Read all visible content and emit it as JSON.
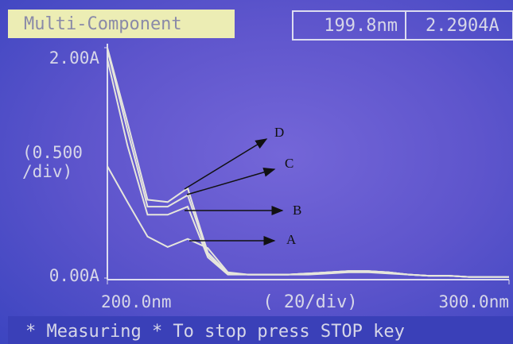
{
  "screen": {
    "mode": "Multi-Component",
    "wavelength": "199.8nm",
    "absorbance": "2.2904A",
    "status": "* Measuring * To stop press STOP key"
  },
  "chart_data": {
    "type": "line",
    "y_label": "(0.500\n/div)",
    "x_label": "( 20/div)",
    "x": [
      200,
      205,
      210,
      215,
      220,
      225,
      230,
      235,
      240,
      245,
      250,
      255,
      260,
      265,
      270,
      275,
      280,
      285,
      290,
      295,
      300
    ],
    "series": [
      {
        "name": "A",
        "color": "#e6e6dc",
        "values": [
          0.97,
          0.66,
          0.36,
          0.27,
          0.34,
          0.26,
          0.05,
          0.03,
          0.03,
          0.03,
          0.03,
          0.04,
          0.05,
          0.05,
          0.04,
          0.03,
          0.02,
          0.02,
          0.01,
          0.01,
          0.01
        ]
      },
      {
        "name": "B",
        "color": "#e6e6dc",
        "values": [
          1.9,
          1.15,
          0.55,
          0.55,
          0.62,
          0.18,
          0.03,
          0.03,
          0.03,
          0.03,
          0.04,
          0.05,
          0.06,
          0.06,
          0.05,
          0.03,
          0.02,
          0.02,
          0.01,
          0.01,
          0.01
        ]
      },
      {
        "name": "C",
        "color": "#e6e6dc",
        "values": [
          1.98,
          1.28,
          0.62,
          0.62,
          0.72,
          0.2,
          0.04,
          0.03,
          0.03,
          0.03,
          0.04,
          0.05,
          0.06,
          0.06,
          0.05,
          0.03,
          0.02,
          0.02,
          0.01,
          0.01,
          0.01
        ]
      },
      {
        "name": "D",
        "color": "#e6e6dc",
        "values": [
          2.0,
          1.35,
          0.68,
          0.66,
          0.78,
          0.22,
          0.04,
          0.03,
          0.03,
          0.03,
          0.04,
          0.05,
          0.06,
          0.06,
          0.05,
          0.03,
          0.02,
          0.02,
          0.01,
          0.01,
          0.01
        ]
      }
    ],
    "xlim": [
      200,
      300
    ],
    "ylim": [
      0,
      2
    ],
    "xticks": [
      {
        "value": 200,
        "label": "200.0nm"
      },
      {
        "value": 300,
        "label": "300.0nm"
      }
    ],
    "yticks": [
      {
        "value": 0,
        "label": "0.00A"
      },
      {
        "value": 2,
        "label": "2.00A"
      }
    ]
  }
}
